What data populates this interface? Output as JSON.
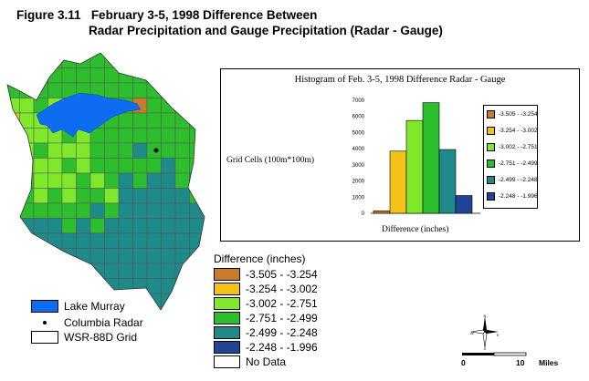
{
  "figure": {
    "number": "Figure 3.11",
    "title_line1": "February 3-5, 1998 Difference Between",
    "title_line2": "Radar Precipitation and Gauge Precipitation (Radar - Gauge)"
  },
  "colors": {
    "c1": "#c87b2b",
    "c2": "#f4c118",
    "c3": "#80e82a",
    "c4": "#2dbe2d",
    "c5": "#1f8a8a",
    "c6": "#1f4596",
    "lake": "#0d6cf0",
    "nodata": "#ffffff"
  },
  "difference_legend": {
    "title": "Difference (inches)",
    "items": [
      {
        "label": "-3.505 - -3.254",
        "color": "#c87b2b"
      },
      {
        "label": "-3.254 - -3.002",
        "color": "#f4c118"
      },
      {
        "label": "-3.002 - -2.751",
        "color": "#80e82a"
      },
      {
        "label": "-2.751 - -2.499",
        "color": "#2dbe2d"
      },
      {
        "label": "-2.499 - -2.248",
        "color": "#1f8a8a"
      },
      {
        "label": "-2.248 - -1.996",
        "color": "#1f4596"
      },
      {
        "label": "No Data",
        "color": "#ffffff"
      }
    ]
  },
  "reference_legend": {
    "items": [
      {
        "label": "Lake Murray",
        "symbol": "lake-swatch"
      },
      {
        "label": "Columbia Radar",
        "symbol": "dot-icon"
      },
      {
        "label": "WSR-88D Grid",
        "symbol": "grid-swatch"
      }
    ]
  },
  "map_labels": {
    "scale_start": "0",
    "scale_end": "10",
    "scale_unit": "Miles",
    "compass": "north-arrow-icon"
  },
  "chart_data": {
    "type": "bar",
    "title": "Histogram of Feb. 3-5, 1998 Difference Radar - Gauge",
    "xlabel": "Difference (inches)",
    "ylabel": "Grid Cells (100m*100m)",
    "ylim": [
      0,
      7000
    ],
    "yticks": [
      "0",
      "1000",
      "2000",
      "3000",
      "4000",
      "5000",
      "6000",
      "7000"
    ],
    "categories": [
      "-3.505 - -3.254",
      "-3.254 - -3.002",
      "-3.002 - -2.751",
      "-2.751 - -2.499",
      "-2.499 - -2.248",
      "-2.248 - -1.996"
    ],
    "values": [
      150,
      3850,
      5750,
      6850,
      3950,
      1100
    ],
    "colors": [
      "#c87b2b",
      "#f4c118",
      "#80e82a",
      "#2dbe2d",
      "#1f8a8a",
      "#1f4596"
    ],
    "legend_placement": "right",
    "grid": false
  }
}
